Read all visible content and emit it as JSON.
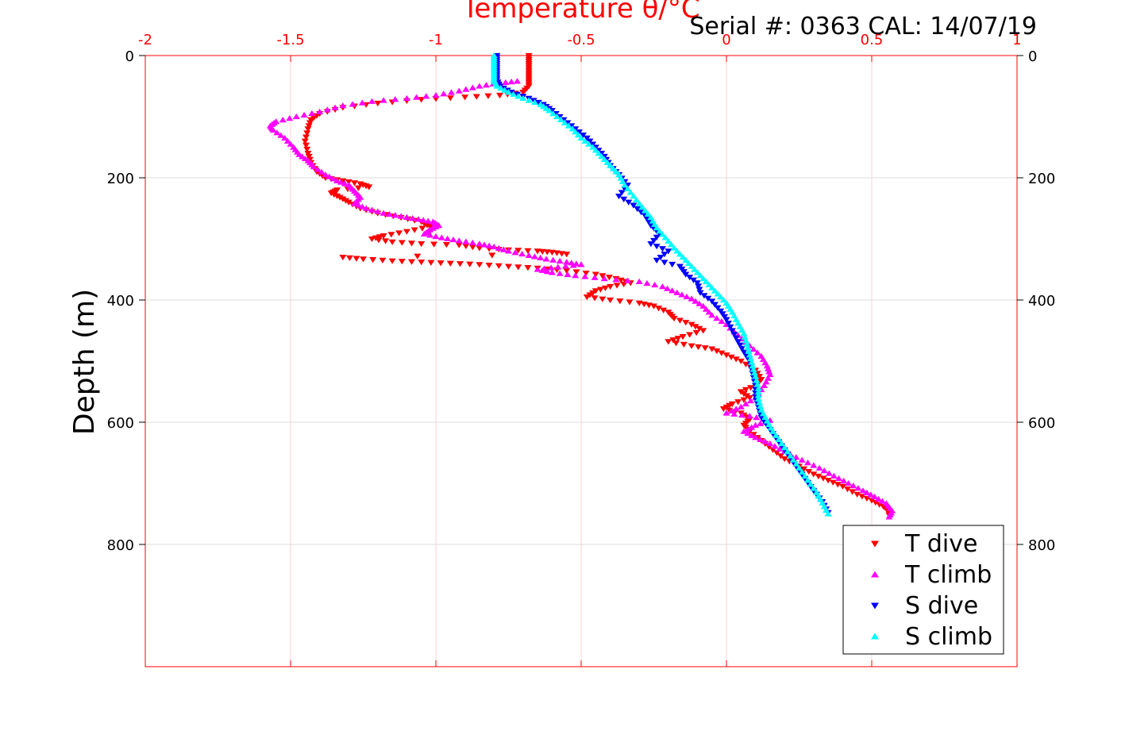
{
  "chart_data": {
    "type": "scatter",
    "title": "",
    "xlabel": "Temperature θ/°C",
    "ylabel": "Depth (m)",
    "annotation": "Serial #: 0363  CAL: 14/07/19",
    "xlim": [
      -2,
      1
    ],
    "ylim": [
      0,
      1000
    ],
    "y_reversed": true,
    "x_ticks": [
      "-2",
      "-1.5",
      "-1",
      "-0.5",
      "0",
      "0.5",
      "1"
    ],
    "y_ticks": [
      "0",
      "200",
      "400",
      "600",
      "800"
    ],
    "grid": true,
    "legend_position": "bottom-right",
    "axis_color": "#ff0000",
    "series": [
      {
        "name": "T dive",
        "color": "#ff0000",
        "marker": "triangle-down",
        "points": [
          [
            -0.68,
            0
          ],
          [
            -0.68,
            10
          ],
          [
            -0.68,
            20
          ],
          [
            -0.68,
            30
          ],
          [
            -0.68,
            40
          ],
          [
            -0.68,
            50
          ],
          [
            -0.7,
            60
          ],
          [
            -0.78,
            65
          ],
          [
            -0.9,
            68
          ],
          [
            -1.05,
            72
          ],
          [
            -1.2,
            78
          ],
          [
            -1.32,
            85
          ],
          [
            -1.4,
            95
          ],
          [
            -1.43,
            105
          ],
          [
            -1.44,
            120
          ],
          [
            -1.45,
            140
          ],
          [
            -1.44,
            160
          ],
          [
            -1.43,
            175
          ],
          [
            -1.41,
            190
          ],
          [
            -1.38,
            200
          ],
          [
            -1.32,
            205
          ],
          [
            -1.26,
            210
          ],
          [
            -1.23,
            215
          ],
          [
            -1.34,
            220
          ],
          [
            -1.36,
            225
          ],
          [
            -1.33,
            232
          ],
          [
            -1.3,
            240
          ],
          [
            -1.26,
            250
          ],
          [
            -1.2,
            258
          ],
          [
            -1.12,
            265
          ],
          [
            -1.05,
            272
          ],
          [
            -1.02,
            280
          ],
          [
            -1.1,
            288
          ],
          [
            -1.18,
            295
          ],
          [
            -1.22,
            300
          ],
          [
            -1.15,
            305
          ],
          [
            -1.05,
            308
          ],
          [
            -0.92,
            310
          ],
          [
            -0.85,
            315
          ],
          [
            -0.75,
            318
          ],
          [
            -0.65,
            320
          ],
          [
            -0.6,
            322
          ],
          [
            -0.55,
            325
          ],
          [
            -1.32,
            330
          ],
          [
            -1.25,
            333
          ],
          [
            -1.15,
            336
          ],
          [
            -1.05,
            338
          ],
          [
            -0.95,
            340
          ],
          [
            -0.85,
            342
          ],
          [
            -0.75,
            345
          ],
          [
            -0.65,
            348
          ],
          [
            -0.55,
            352
          ],
          [
            -0.45,
            358
          ],
          [
            -0.38,
            365
          ],
          [
            -0.33,
            372
          ],
          [
            -0.4,
            378
          ],
          [
            -0.45,
            385
          ],
          [
            -0.48,
            395
          ],
          [
            -0.4,
            400
          ],
          [
            -0.3,
            405
          ],
          [
            -0.25,
            410
          ],
          [
            -0.2,
            420
          ],
          [
            -0.18,
            430
          ],
          [
            -0.12,
            440
          ],
          [
            -0.08,
            450
          ],
          [
            -0.15,
            460
          ],
          [
            -0.2,
            468
          ],
          [
            -0.12,
            475
          ],
          [
            -0.05,
            480
          ],
          [
            0.0,
            490
          ],
          [
            0.05,
            500
          ],
          [
            0.1,
            515
          ],
          [
            0.12,
            530
          ],
          [
            0.1,
            540
          ],
          [
            0.05,
            550
          ],
          [
            0.08,
            560
          ],
          [
            0.02,
            570
          ],
          [
            -0.01,
            578
          ],
          [
            0.05,
            585
          ],
          [
            0.08,
            595
          ],
          [
            0.06,
            605
          ],
          [
            0.08,
            615
          ],
          [
            0.12,
            630
          ],
          [
            0.16,
            645
          ],
          [
            0.2,
            660
          ],
          [
            0.25,
            672
          ],
          [
            0.3,
            685
          ],
          [
            0.35,
            695
          ],
          [
            0.4,
            705
          ],
          [
            0.45,
            718
          ],
          [
            0.5,
            728
          ],
          [
            0.54,
            738
          ],
          [
            0.56,
            745
          ],
          [
            0.56,
            752
          ]
        ]
      },
      {
        "name": "T climb",
        "color": "#ff00ff",
        "marker": "triangle-up",
        "points": [
          [
            -0.72,
            42
          ],
          [
            -0.78,
            45
          ],
          [
            -0.85,
            50
          ],
          [
            -0.92,
            58
          ],
          [
            -1.0,
            65
          ],
          [
            -1.1,
            70
          ],
          [
            -1.22,
            75
          ],
          [
            -1.32,
            82
          ],
          [
            -1.4,
            92
          ],
          [
            -1.48,
            100
          ],
          [
            -1.55,
            108
          ],
          [
            -1.57,
            115
          ],
          [
            -1.56,
            122
          ],
          [
            -1.52,
            135
          ],
          [
            -1.49,
            150
          ],
          [
            -1.47,
            162
          ],
          [
            -1.44,
            172
          ],
          [
            -1.42,
            182
          ],
          [
            -1.38,
            195
          ],
          [
            -1.34,
            205
          ],
          [
            -1.3,
            212
          ],
          [
            -1.28,
            222
          ],
          [
            -1.26,
            232
          ],
          [
            -1.28,
            242
          ],
          [
            -1.24,
            250
          ],
          [
            -1.18,
            258
          ],
          [
            -1.12,
            263
          ],
          [
            -1.06,
            268
          ],
          [
            -1.01,
            272
          ],
          [
            -0.99,
            278
          ],
          [
            -1.02,
            285
          ],
          [
            -1.04,
            292
          ],
          [
            -0.98,
            298
          ],
          [
            -0.92,
            303
          ],
          [
            -0.85,
            308
          ],
          [
            -0.8,
            313
          ],
          [
            -0.75,
            320
          ],
          [
            -0.68,
            327
          ],
          [
            -0.62,
            333
          ],
          [
            -0.55,
            338
          ],
          [
            -0.5,
            342
          ],
          [
            -0.58,
            346
          ],
          [
            -0.65,
            350
          ],
          [
            -0.6,
            355
          ],
          [
            -0.52,
            360
          ],
          [
            -0.42,
            365
          ],
          [
            -0.3,
            370
          ],
          [
            -0.22,
            378
          ],
          [
            -0.17,
            388
          ],
          [
            -0.12,
            398
          ],
          [
            -0.08,
            410
          ],
          [
            -0.05,
            425
          ],
          [
            0.0,
            440
          ],
          [
            0.04,
            458
          ],
          [
            0.08,
            475
          ],
          [
            0.12,
            492
          ],
          [
            0.14,
            508
          ],
          [
            0.15,
            522
          ],
          [
            0.13,
            540
          ],
          [
            0.1,
            560
          ],
          [
            0.05,
            575
          ],
          [
            0.0,
            585
          ],
          [
            0.08,
            590
          ],
          [
            0.15,
            597
          ],
          [
            0.1,
            605
          ],
          [
            0.06,
            615
          ],
          [
            0.1,
            625
          ],
          [
            0.15,
            635
          ],
          [
            0.2,
            648
          ],
          [
            0.26,
            662
          ],
          [
            0.32,
            675
          ],
          [
            0.37,
            688
          ],
          [
            0.42,
            700
          ],
          [
            0.47,
            712
          ],
          [
            0.51,
            722
          ],
          [
            0.55,
            733
          ],
          [
            0.57,
            745
          ],
          [
            0.56,
            755
          ]
        ]
      },
      {
        "name": "S dive",
        "color": "#0000ff",
        "marker": "triangle-down",
        "points": [
          [
            -0.79,
            0
          ],
          [
            -0.79,
            10
          ],
          [
            -0.79,
            20
          ],
          [
            -0.79,
            30
          ],
          [
            -0.79,
            40
          ],
          [
            -0.78,
            50
          ],
          [
            -0.74,
            60
          ],
          [
            -0.68,
            70
          ],
          [
            -0.63,
            80
          ],
          [
            -0.6,
            90
          ],
          [
            -0.56,
            105
          ],
          [
            -0.52,
            120
          ],
          [
            -0.48,
            135
          ],
          [
            -0.45,
            150
          ],
          [
            -0.42,
            165
          ],
          [
            -0.4,
            180
          ],
          [
            -0.37,
            195
          ],
          [
            -0.34,
            212
          ],
          [
            -0.37,
            230
          ],
          [
            -0.32,
            245
          ],
          [
            -0.28,
            262
          ],
          [
            -0.26,
            278
          ],
          [
            -0.23,
            292
          ],
          [
            -0.26,
            308
          ],
          [
            -0.2,
            320
          ],
          [
            -0.24,
            335
          ],
          [
            -0.16,
            345
          ],
          [
            -0.14,
            358
          ],
          [
            -0.1,
            372
          ],
          [
            -0.09,
            388
          ],
          [
            -0.05,
            402
          ],
          [
            -0.02,
            418
          ],
          [
            0.0,
            432
          ],
          [
            0.02,
            450
          ],
          [
            0.04,
            468
          ],
          [
            0.06,
            485
          ],
          [
            0.08,
            500
          ],
          [
            0.09,
            520
          ],
          [
            0.1,
            540
          ],
          [
            0.1,
            558
          ],
          [
            0.11,
            575
          ],
          [
            0.12,
            592
          ],
          [
            0.15,
            612
          ],
          [
            0.18,
            632
          ],
          [
            0.21,
            652
          ],
          [
            0.24,
            672
          ],
          [
            0.27,
            692
          ],
          [
            0.3,
            712
          ],
          [
            0.33,
            730
          ],
          [
            0.35,
            748
          ]
        ]
      },
      {
        "name": "S climb",
        "color": "#00ffff",
        "marker": "triangle-up",
        "points": [
          [
            -0.8,
            0
          ],
          [
            -0.8,
            10
          ],
          [
            -0.8,
            20
          ],
          [
            -0.8,
            30
          ],
          [
            -0.8,
            40
          ],
          [
            -0.79,
            50
          ],
          [
            -0.75,
            60
          ],
          [
            -0.7,
            70
          ],
          [
            -0.64,
            80
          ],
          [
            -0.61,
            90
          ],
          [
            -0.57,
            105
          ],
          [
            -0.53,
            120
          ],
          [
            -0.5,
            135
          ],
          [
            -0.46,
            150
          ],
          [
            -0.43,
            165
          ],
          [
            -0.4,
            180
          ],
          [
            -0.37,
            195
          ],
          [
            -0.35,
            212
          ],
          [
            -0.32,
            230
          ],
          [
            -0.29,
            248
          ],
          [
            -0.26,
            265
          ],
          [
            -0.24,
            282
          ],
          [
            -0.21,
            298
          ],
          [
            -0.18,
            315
          ],
          [
            -0.15,
            330
          ],
          [
            -0.12,
            345
          ],
          [
            -0.09,
            360
          ],
          [
            -0.06,
            375
          ],
          [
            -0.03,
            390
          ],
          [
            0.0,
            405
          ],
          [
            0.02,
            420
          ],
          [
            0.04,
            438
          ],
          [
            0.06,
            455
          ],
          [
            0.07,
            472
          ],
          [
            0.08,
            490
          ],
          [
            0.09,
            508
          ],
          [
            0.1,
            525
          ],
          [
            0.11,
            545
          ],
          [
            0.11,
            562
          ],
          [
            0.12,
            580
          ],
          [
            0.14,
            598
          ],
          [
            0.16,
            615
          ],
          [
            0.19,
            635
          ],
          [
            0.22,
            655
          ],
          [
            0.25,
            675
          ],
          [
            0.28,
            695
          ],
          [
            0.31,
            715
          ],
          [
            0.33,
            732
          ],
          [
            0.35,
            750
          ]
        ]
      }
    ]
  }
}
